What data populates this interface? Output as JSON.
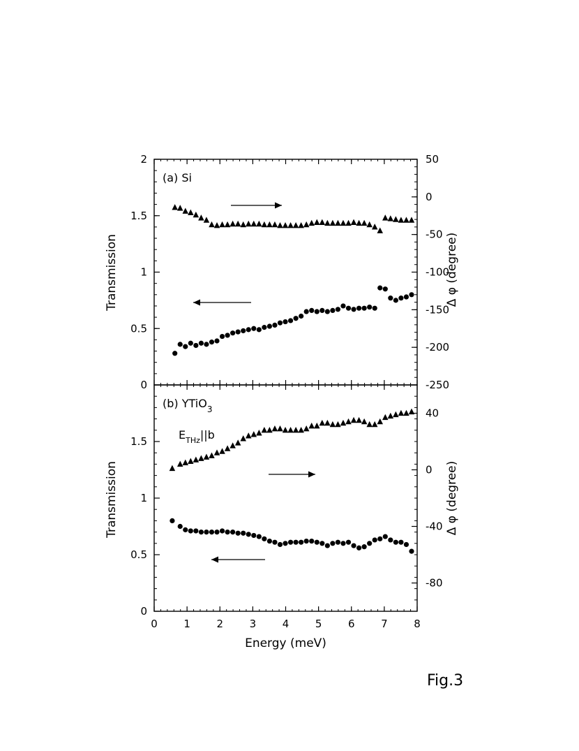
{
  "figure_label": "Fig.3",
  "shared_xaxis": {
    "label": "Energy (meV)",
    "min": 0,
    "max": 8,
    "ticks": [
      "0",
      "1",
      "2",
      "3",
      "4",
      "5",
      "6",
      "7",
      "8"
    ]
  },
  "chart_data": [
    {
      "type": "scatter",
      "panel_label": "(a) Si",
      "xlim": [
        0,
        8
      ],
      "left_axis": {
        "label": "Transmission",
        "lim": [
          0,
          2
        ],
        "ticks": [
          "0",
          "0.5",
          "1",
          "1.5",
          "2"
        ]
      },
      "right_axis": {
        "label": "Δ φ (degree)",
        "lim": [
          -250,
          50
        ],
        "ticks": [
          "-250",
          "-200",
          "-150",
          "-100",
          "-50",
          "0",
          "50"
        ]
      },
      "series": [
        {
          "marker": "circle",
          "axis": "left",
          "x": [
            0.63,
            0.79,
            0.95,
            1.11,
            1.27,
            1.43,
            1.59,
            1.75,
            1.91,
            2.07,
            2.23,
            2.39,
            2.55,
            2.71,
            2.87,
            3.03,
            3.19,
            3.35,
            3.51,
            3.67,
            3.83,
            3.99,
            4.15,
            4.31,
            4.47,
            4.63,
            4.79,
            4.95,
            5.11,
            5.27,
            5.43,
            5.59,
            5.75,
            5.91,
            6.07,
            6.23,
            6.39,
            6.55,
            6.71,
            6.87,
            7.03,
            7.19,
            7.35,
            7.51,
            7.67,
            7.83
          ],
          "y": [
            0.28,
            0.36,
            0.34,
            0.37,
            0.35,
            0.37,
            0.36,
            0.38,
            0.39,
            0.43,
            0.44,
            0.46,
            0.47,
            0.48,
            0.49,
            0.5,
            0.49,
            0.51,
            0.52,
            0.53,
            0.55,
            0.56,
            0.57,
            0.59,
            0.61,
            0.65,
            0.66,
            0.65,
            0.66,
            0.65,
            0.66,
            0.67,
            0.7,
            0.68,
            0.67,
            0.68,
            0.68,
            0.69,
            0.68,
            0.86,
            0.85,
            0.77,
            0.75,
            0.77,
            0.78,
            0.8
          ]
        },
        {
          "marker": "triangle",
          "axis": "right",
          "x": [
            0.63,
            0.79,
            0.95,
            1.11,
            1.27,
            1.43,
            1.59,
            1.75,
            1.91,
            2.07,
            2.23,
            2.39,
            2.55,
            2.71,
            2.87,
            3.03,
            3.19,
            3.35,
            3.51,
            3.67,
            3.83,
            3.99,
            4.15,
            4.31,
            4.47,
            4.63,
            4.79,
            4.95,
            5.11,
            5.27,
            5.43,
            5.59,
            5.75,
            5.91,
            6.07,
            6.23,
            6.39,
            6.55,
            6.71,
            6.87,
            7.03,
            7.19,
            7.35,
            7.51,
            7.67,
            7.83
          ],
          "y": [
            -14,
            -15,
            -19,
            -21,
            -24,
            -28,
            -31,
            -37,
            -38,
            -37,
            -37,
            -36,
            -36,
            -37,
            -36,
            -36,
            -36,
            -37,
            -37,
            -37,
            -38,
            -38,
            -38,
            -38,
            -38,
            -37,
            -35,
            -34,
            -34,
            -35,
            -35,
            -35,
            -35,
            -35,
            -34,
            -35,
            -35,
            -37,
            -40,
            -45,
            -28,
            -29,
            -30,
            -31,
            -31,
            -31
          ]
        }
      ],
      "annotations": [
        {
          "type": "arrow",
          "direction": "right",
          "points_to": "right-axis"
        },
        {
          "type": "arrow",
          "direction": "left",
          "points_to": "left-axis"
        }
      ]
    },
    {
      "type": "scatter",
      "panel_label_main": "(b) YTiO",
      "panel_label_sub": "3",
      "field_label_main": "E",
      "field_label_sub": "THz",
      "field_label_rest": "||b",
      "xlim": [
        0,
        8
      ],
      "left_axis": {
        "label": "Transmission",
        "lim": [
          0,
          2
        ],
        "ticks": [
          "0",
          "0.5",
          "1",
          "1.5"
        ]
      },
      "right_axis": {
        "label": "Δ φ (degree)",
        "lim": [
          -100,
          60
        ],
        "ticks": [
          "-80",
          "-40",
          "0",
          "40"
        ]
      },
      "series": [
        {
          "marker": "circle",
          "axis": "left",
          "x": [
            0.55,
            0.79,
            0.95,
            1.11,
            1.27,
            1.43,
            1.59,
            1.75,
            1.91,
            2.07,
            2.23,
            2.39,
            2.55,
            2.71,
            2.87,
            3.03,
            3.19,
            3.35,
            3.51,
            3.67,
            3.83,
            3.99,
            4.15,
            4.31,
            4.47,
            4.63,
            4.79,
            4.95,
            5.11,
            5.27,
            5.43,
            5.59,
            5.75,
            5.91,
            6.07,
            6.23,
            6.39,
            6.55,
            6.71,
            6.87,
            7.03,
            7.19,
            7.35,
            7.51,
            7.67,
            7.83
          ],
          "y": [
            0.8,
            0.75,
            0.72,
            0.71,
            0.71,
            0.7,
            0.7,
            0.7,
            0.7,
            0.71,
            0.7,
            0.7,
            0.69,
            0.69,
            0.68,
            0.67,
            0.66,
            0.64,
            0.62,
            0.61,
            0.59,
            0.6,
            0.61,
            0.61,
            0.61,
            0.62,
            0.62,
            0.61,
            0.6,
            0.58,
            0.6,
            0.61,
            0.6,
            0.61,
            0.58,
            0.56,
            0.57,
            0.6,
            0.63,
            0.64,
            0.66,
            0.63,
            0.61,
            0.61,
            0.59,
            0.53
          ]
        },
        {
          "marker": "triangle",
          "axis": "right",
          "x": [
            0.55,
            0.79,
            0.95,
            1.11,
            1.27,
            1.43,
            1.59,
            1.75,
            1.91,
            2.07,
            2.23,
            2.39,
            2.55,
            2.71,
            2.87,
            3.03,
            3.19,
            3.35,
            3.51,
            3.67,
            3.83,
            3.99,
            4.15,
            4.31,
            4.47,
            4.63,
            4.79,
            4.95,
            5.11,
            5.27,
            5.43,
            5.59,
            5.75,
            5.91,
            6.07,
            6.23,
            6.39,
            6.55,
            6.71,
            6.87,
            7.03,
            7.19,
            7.35,
            7.51,
            7.67,
            7.83
          ],
          "y": [
            1,
            4,
            5,
            6,
            7,
            8,
            9,
            10,
            12,
            13,
            15,
            17,
            19,
            22,
            24,
            25,
            26,
            28,
            28,
            29,
            29,
            28,
            28,
            28,
            28,
            29,
            31,
            31,
            33,
            33,
            32,
            32,
            33,
            34,
            35,
            35,
            34,
            32,
            32,
            34,
            37,
            38,
            39,
            40,
            40,
            41
          ]
        }
      ],
      "annotations": [
        {
          "type": "arrow",
          "direction": "right",
          "points_to": "right-axis"
        },
        {
          "type": "arrow",
          "direction": "left",
          "points_to": "left-axis"
        }
      ]
    }
  ]
}
